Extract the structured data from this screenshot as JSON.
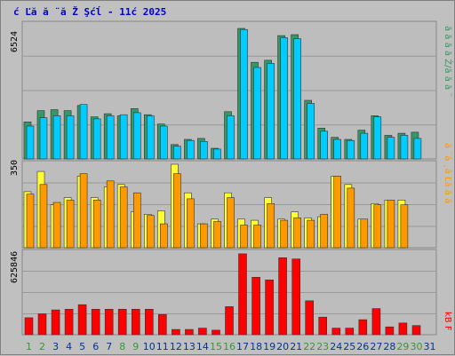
{
  "title": "ć Ľă  ă ¨ă Ž Şćĺ  - 11ć   2025",
  "colors": {
    "background": "#c0c0c0",
    "panel": "#bdbdbd",
    "grid": "#999999",
    "visits_front": "#00ccff",
    "visits_back": "#339966",
    "pages_front": "#ff9900",
    "pages_back": "#ffff33",
    "bandwidth": "#ff0000",
    "weekday_label": "#003399",
    "weekend_label": "#339933"
  },
  "legend": {
    "top": "ă ă ă ă Ż/ă ă ă ¨",
    "middle": "ă ¨ă ¸ă Ľă ă ă",
    "bottom": "kB F"
  },
  "chart_data": [
    {
      "type": "bar",
      "name": "visits",
      "top_label": "6524",
      "ylim": [
        0,
        6524
      ],
      "categories": [
        "1",
        "2",
        "3",
        "4",
        "5",
        "6",
        "7",
        "8",
        "9",
        "10",
        "11",
        "12",
        "13",
        "14",
        "15",
        "16",
        "17",
        "18",
        "19",
        "20",
        "21",
        "22",
        "23",
        "24",
        "25",
        "26",
        "27",
        "28",
        "29",
        "30",
        "31"
      ],
      "series": [
        {
          "values": [
            1800,
            2350,
            2400,
            2350,
            2600,
            2050,
            2200,
            2100,
            2450,
            2150,
            1700,
            700,
            950,
            1000,
            520,
            2300,
            6350,
            4700,
            4800,
            6000,
            6050,
            2850,
            1500,
            1050,
            950,
            1400,
            2100,
            1150,
            1250,
            1300,
            0
          ]
        },
        {
          "values": [
            1600,
            2000,
            2100,
            2100,
            2650,
            1950,
            2100,
            2150,
            2250,
            2100,
            1600,
            620,
            900,
            850,
            480,
            2100,
            6300,
            4450,
            4650,
            5900,
            5850,
            2700,
            1350,
            950,
            900,
            1250,
            2050,
            1050,
            1150,
            1000,
            0
          ]
        }
      ]
    },
    {
      "type": "bar",
      "name": "pages",
      "top_label": "350",
      "ylim": [
        0,
        350
      ],
      "categories": [
        "1",
        "2",
        "3",
        "4",
        "5",
        "6",
        "7",
        "8",
        "9",
        "10",
        "11",
        "12",
        "13",
        "14",
        "15",
        "16",
        "17",
        "18",
        "19",
        "20",
        "21",
        "22",
        "23",
        "24",
        "25",
        "26",
        "27",
        "28",
        "29",
        "30",
        "31"
      ],
      "series": [
        {
          "values": [
            235,
            320,
            180,
            210,
            300,
            210,
            255,
            265,
            150,
            140,
            155,
            350,
            230,
            100,
            120,
            230,
            120,
            115,
            210,
            120,
            150,
            125,
            130,
            300,
            265,
            120,
            185,
            200,
            200,
            0,
            0
          ]
        },
        {
          "values": [
            225,
            265,
            190,
            200,
            310,
            200,
            280,
            255,
            230,
            135,
            100,
            310,
            205,
            100,
            110,
            210,
            95,
            95,
            185,
            115,
            125,
            115,
            140,
            300,
            250,
            120,
            180,
            200,
            180,
            0,
            0
          ]
        }
      ]
    },
    {
      "type": "bar",
      "name": "bandwidth",
      "top_label": "625846",
      "ylim": [
        0,
        625846
      ],
      "categories": [
        "1",
        "2",
        "3",
        "4",
        "5",
        "6",
        "7",
        "8",
        "9",
        "10",
        "11",
        "12",
        "13",
        "14",
        "15",
        "16",
        "17",
        "18",
        "19",
        "20",
        "21",
        "22",
        "23",
        "24",
        "25",
        "26",
        "27",
        "28",
        "29",
        "30",
        "31"
      ],
      "series": [
        {
          "values": [
            130000,
            160000,
            190000,
            195000,
            230000,
            195000,
            195000,
            195000,
            195000,
            195000,
            155000,
            40000,
            40000,
            50000,
            35000,
            215000,
            620000,
            440000,
            420000,
            590000,
            580000,
            260000,
            135000,
            50000,
            50000,
            115000,
            200000,
            60000,
            90000,
            70000,
            0
          ]
        }
      ]
    }
  ],
  "days": [
    "1",
    "2",
    "3",
    "4",
    "5",
    "6",
    "7",
    "8",
    "9",
    "10",
    "11",
    "12",
    "13",
    "14",
    "15",
    "16",
    "17",
    "18",
    "19",
    "20",
    "21",
    "22",
    "23",
    "24",
    "25",
    "26",
    "27",
    "28",
    "29",
    "30",
    "31"
  ],
  "weekend_days": [
    "1",
    "2",
    "8",
    "9",
    "15",
    "16",
    "22",
    "23",
    "29",
    "30"
  ]
}
